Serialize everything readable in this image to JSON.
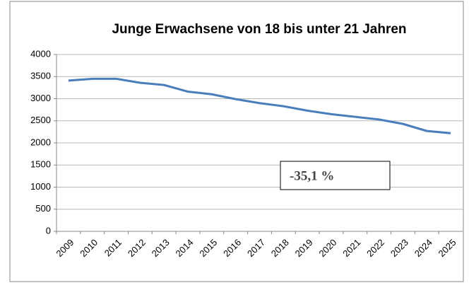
{
  "chart_data": {
    "type": "line",
    "title": "Junge Erwachsene von 18 bis  unter 21 Jahren",
    "categories": [
      "2009",
      "2010",
      "2011",
      "2012",
      "2013",
      "2014",
      "2015",
      "2016",
      "2017",
      "2018",
      "2019",
      "2020",
      "2021",
      "2022",
      "2023",
      "2024",
      "2025"
    ],
    "series": [
      {
        "name": "Junge Erwachsene von 18 bis unter 21 Jahren",
        "color": "#4a7ebb",
        "values": [
          3410,
          3450,
          3450,
          3360,
          3310,
          3160,
          3100,
          2990,
          2900,
          2830,
          2730,
          2650,
          2590,
          2530,
          2430,
          2270,
          2220
        ]
      }
    ],
    "ylim": [
      0,
      4000
    ],
    "yticks": [
      0,
      500,
      1000,
      1500,
      2000,
      2500,
      3000,
      3500,
      4000
    ],
    "grid": true,
    "annotation": "-35,1 %"
  }
}
